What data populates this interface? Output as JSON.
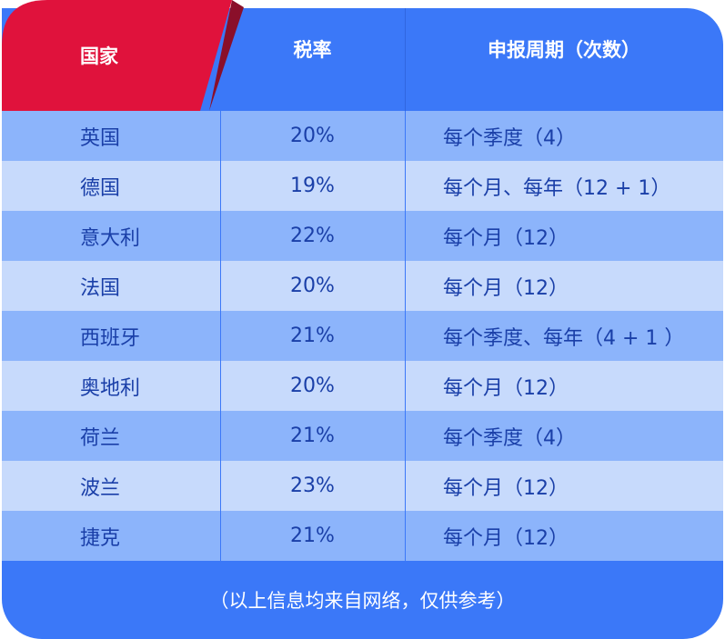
{
  "colors": {
    "header": "#3b78f8",
    "accent_tab": "#e0123c",
    "row_odd": "#8cb4fb",
    "row_even": "#c7dafc",
    "text": "#1a3fa8"
  },
  "headers": [
    "国家",
    "税率",
    "申报周期（次数）"
  ],
  "rows": [
    {
      "country": "英国",
      "rate": "20%",
      "period": "每个季度（4）"
    },
    {
      "country": "德国",
      "rate": "19%",
      "period": "每个月、每年（12 + 1）"
    },
    {
      "country": "意大利",
      "rate": "22%",
      "period": "每个月（12）"
    },
    {
      "country": "法国",
      "rate": "20%",
      "period": "每个月（12）"
    },
    {
      "country": "西班牙",
      "rate": "21%",
      "period": "每个季度、每年（4 + 1 ）"
    },
    {
      "country": "奥地利",
      "rate": "20%",
      "period": "每个月（12）"
    },
    {
      "country": "荷兰",
      "rate": "21%",
      "period": "每个季度（4）"
    },
    {
      "country": "波兰",
      "rate": "23%",
      "period": "每个月（12）"
    },
    {
      "country": "捷克",
      "rate": "21%",
      "period": "每个月（12）"
    }
  ],
  "footer": "（以上信息均来自网络，仅供参考）"
}
